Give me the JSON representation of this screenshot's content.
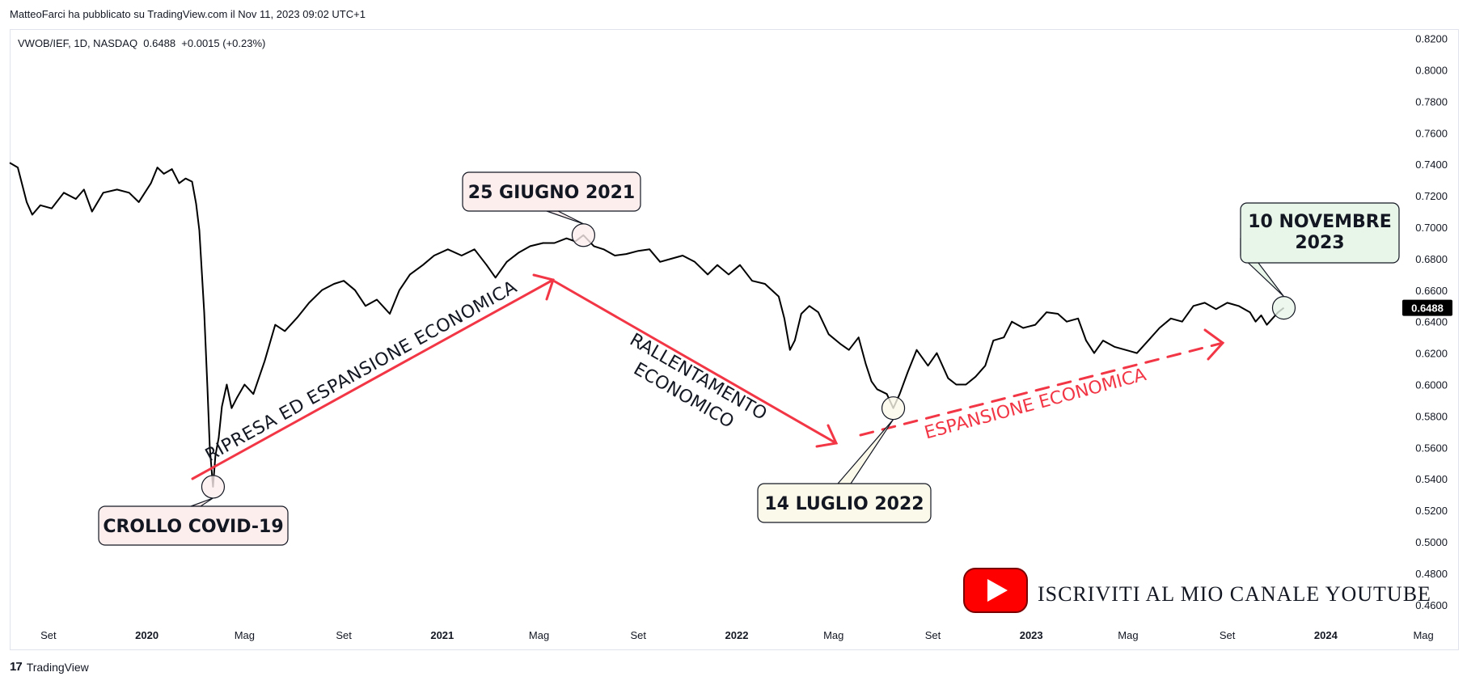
{
  "header": {
    "published_text": "MatteoFarci ha pubblicato su TradingView.com il Nov 11, 2023 09:02 UTC+1"
  },
  "footer": {
    "brand": "TradingView"
  },
  "youtube": {
    "cta": "ISCRIVITI AL MIO CANALE YOUTUBE"
  },
  "chart_data": {
    "type": "line",
    "symbol_line": "VWOB/IEF, 1D, NASDAQ  0.6488  +0.0015 (+0.23%)",
    "last_price_label": "0.6488",
    "title": "",
    "xlabel": "",
    "ylabel": "",
    "y_range": [
      0.446,
      0.826
    ],
    "y_ticks": [
      "0.8200",
      "0.8000",
      "0.7800",
      "0.7600",
      "0.7400",
      "0.7200",
      "0.7000",
      "0.6800",
      "0.6600",
      "0.6400",
      "0.6200",
      "0.6000",
      "0.5800",
      "0.5600",
      "0.5400",
      "0.5200",
      "0.5000",
      "0.4800",
      "0.4600"
    ],
    "x_range": [
      "2019-07-15",
      "2024-06-15"
    ],
    "x_ticks": [
      {
        "date": "2019-09-01",
        "label": "Set",
        "bold": false
      },
      {
        "date": "2020-01-01",
        "label": "2020",
        "bold": true
      },
      {
        "date": "2020-05-01",
        "label": "Mag",
        "bold": false
      },
      {
        "date": "2020-09-01",
        "label": "Set",
        "bold": false
      },
      {
        "date": "2021-01-01",
        "label": "2021",
        "bold": true
      },
      {
        "date": "2021-05-01",
        "label": "Mag",
        "bold": false
      },
      {
        "date": "2021-09-01",
        "label": "Set",
        "bold": false
      },
      {
        "date": "2022-01-01",
        "label": "2022",
        "bold": true
      },
      {
        "date": "2022-05-01",
        "label": "Mag",
        "bold": false
      },
      {
        "date": "2022-09-01",
        "label": "Set",
        "bold": false
      },
      {
        "date": "2023-01-01",
        "label": "2023",
        "bold": true
      },
      {
        "date": "2023-05-01",
        "label": "Mag",
        "bold": false
      },
      {
        "date": "2023-09-01",
        "label": "Set",
        "bold": false
      },
      {
        "date": "2024-01-01",
        "label": "2024",
        "bold": true
      },
      {
        "date": "2024-05-01",
        "label": "Mag",
        "bold": false
      }
    ],
    "series": [
      {
        "color": "#000000",
        "points": [
          [
            "2019-07-15",
            0.741
          ],
          [
            "2019-07-25",
            0.738
          ],
          [
            "2019-08-05",
            0.716
          ],
          [
            "2019-08-12",
            0.708
          ],
          [
            "2019-08-22",
            0.714
          ],
          [
            "2019-09-05",
            0.712
          ],
          [
            "2019-09-20",
            0.722
          ],
          [
            "2019-10-05",
            0.718
          ],
          [
            "2019-10-15",
            0.724
          ],
          [
            "2019-10-25",
            0.71
          ],
          [
            "2019-11-08",
            0.722
          ],
          [
            "2019-11-25",
            0.724
          ],
          [
            "2019-12-10",
            0.722
          ],
          [
            "2019-12-22",
            0.716
          ],
          [
            "2020-01-06",
            0.728
          ],
          [
            "2020-01-14",
            0.738
          ],
          [
            "2020-01-22",
            0.734
          ],
          [
            "2020-02-01",
            0.737
          ],
          [
            "2020-02-10",
            0.728
          ],
          [
            "2020-02-18",
            0.731
          ],
          [
            "2020-02-26",
            0.729
          ],
          [
            "2020-03-02",
            0.715
          ],
          [
            "2020-03-06",
            0.698
          ],
          [
            "2020-03-09",
            0.672
          ],
          [
            "2020-03-12",
            0.646
          ],
          [
            "2020-03-16",
            0.598
          ],
          [
            "2020-03-19",
            0.56
          ],
          [
            "2020-03-23",
            0.535
          ],
          [
            "2020-03-26",
            0.555
          ],
          [
            "2020-03-30",
            0.566
          ],
          [
            "2020-04-03",
            0.586
          ],
          [
            "2020-04-09",
            0.6
          ],
          [
            "2020-04-15",
            0.585
          ],
          [
            "2020-04-22",
            0.592
          ],
          [
            "2020-05-01",
            0.6
          ],
          [
            "2020-05-12",
            0.594
          ],
          [
            "2020-05-26",
            0.615
          ],
          [
            "2020-06-08",
            0.638
          ],
          [
            "2020-06-20",
            0.634
          ],
          [
            "2020-07-06",
            0.643
          ],
          [
            "2020-07-20",
            0.652
          ],
          [
            "2020-08-05",
            0.66
          ],
          [
            "2020-08-20",
            0.664
          ],
          [
            "2020-09-01",
            0.666
          ],
          [
            "2020-09-15",
            0.66
          ],
          [
            "2020-09-28",
            0.65
          ],
          [
            "2020-10-12",
            0.654
          ],
          [
            "2020-10-28",
            0.645
          ],
          [
            "2020-11-09",
            0.66
          ],
          [
            "2020-11-22",
            0.67
          ],
          [
            "2020-12-08",
            0.676
          ],
          [
            "2020-12-22",
            0.682
          ],
          [
            "2021-01-08",
            0.686
          ],
          [
            "2021-01-25",
            0.682
          ],
          [
            "2021-02-10",
            0.686
          ],
          [
            "2021-02-25",
            0.676
          ],
          [
            "2021-03-08",
            0.668
          ],
          [
            "2021-03-22",
            0.678
          ],
          [
            "2021-04-06",
            0.684
          ],
          [
            "2021-04-20",
            0.688
          ],
          [
            "2021-05-06",
            0.69
          ],
          [
            "2021-05-20",
            0.69
          ],
          [
            "2021-06-04",
            0.693
          ],
          [
            "2021-06-15",
            0.691
          ],
          [
            "2021-06-25",
            0.695
          ],
          [
            "2021-07-08",
            0.688
          ],
          [
            "2021-07-20",
            0.686
          ],
          [
            "2021-08-03",
            0.682
          ],
          [
            "2021-08-17",
            0.683
          ],
          [
            "2021-09-01",
            0.685
          ],
          [
            "2021-09-15",
            0.686
          ],
          [
            "2021-09-28",
            0.678
          ],
          [
            "2021-10-12",
            0.68
          ],
          [
            "2021-10-26",
            0.682
          ],
          [
            "2021-11-10",
            0.678
          ],
          [
            "2021-11-26",
            0.67
          ],
          [
            "2021-12-08",
            0.676
          ],
          [
            "2021-12-22",
            0.67
          ],
          [
            "2022-01-05",
            0.676
          ],
          [
            "2022-01-20",
            0.666
          ],
          [
            "2022-02-05",
            0.664
          ],
          [
            "2022-02-22",
            0.656
          ],
          [
            "2022-03-01",
            0.642
          ],
          [
            "2022-03-08",
            0.622
          ],
          [
            "2022-03-14",
            0.628
          ],
          [
            "2022-03-22",
            0.645
          ],
          [
            "2022-04-01",
            0.65
          ],
          [
            "2022-04-12",
            0.646
          ],
          [
            "2022-04-25",
            0.632
          ],
          [
            "2022-05-09",
            0.626
          ],
          [
            "2022-05-20",
            0.622
          ],
          [
            "2022-06-01",
            0.63
          ],
          [
            "2022-06-10",
            0.613
          ],
          [
            "2022-06-17",
            0.602
          ],
          [
            "2022-06-24",
            0.597
          ],
          [
            "2022-07-06",
            0.594
          ],
          [
            "2022-07-14",
            0.585
          ],
          [
            "2022-07-22",
            0.594
          ],
          [
            "2022-08-01",
            0.608
          ],
          [
            "2022-08-12",
            0.622
          ],
          [
            "2022-08-26",
            0.612
          ],
          [
            "2022-09-06",
            0.62
          ],
          [
            "2022-09-20",
            0.604
          ],
          [
            "2022-09-30",
            0.6
          ],
          [
            "2022-10-12",
            0.6
          ],
          [
            "2022-10-24",
            0.605
          ],
          [
            "2022-11-05",
            0.612
          ],
          [
            "2022-11-15",
            0.628
          ],
          [
            "2022-11-28",
            0.63
          ],
          [
            "2022-12-08",
            0.64
          ],
          [
            "2022-12-22",
            0.636
          ],
          [
            "2023-01-06",
            0.638
          ],
          [
            "2023-01-20",
            0.646
          ],
          [
            "2023-02-03",
            0.645
          ],
          [
            "2023-02-14",
            0.64
          ],
          [
            "2023-02-28",
            0.642
          ],
          [
            "2023-03-10",
            0.628
          ],
          [
            "2023-03-20",
            0.62
          ],
          [
            "2023-03-31",
            0.628
          ],
          [
            "2023-04-14",
            0.624
          ],
          [
            "2023-04-28",
            0.622
          ],
          [
            "2023-05-12",
            0.62
          ],
          [
            "2023-05-26",
            0.628
          ],
          [
            "2023-06-09",
            0.636
          ],
          [
            "2023-06-23",
            0.642
          ],
          [
            "2023-07-07",
            0.64
          ],
          [
            "2023-07-21",
            0.65
          ],
          [
            "2023-08-04",
            0.652
          ],
          [
            "2023-08-18",
            0.648
          ],
          [
            "2023-09-01",
            0.652
          ],
          [
            "2023-09-15",
            0.65
          ],
          [
            "2023-09-29",
            0.646
          ],
          [
            "2023-10-06",
            0.64
          ],
          [
            "2023-10-13",
            0.644
          ],
          [
            "2023-10-20",
            0.638
          ],
          [
            "2023-10-27",
            0.642
          ],
          [
            "2023-11-03",
            0.646
          ],
          [
            "2023-11-10",
            0.6488
          ]
        ]
      }
    ],
    "annotations": [
      {
        "text": "CROLLO COVID-19",
        "date": "2020-03-23",
        "value": 0.535,
        "bg": "#fdeeee"
      },
      {
        "text": "25 GIUGNO 2021",
        "date": "2021-06-25",
        "value": 0.695,
        "bg": "#fdeeee"
      },
      {
        "text": "14 LUGLIO 2022",
        "date": "2022-07-14",
        "value": 0.585,
        "bg": "#fbf9ea"
      },
      {
        "text": "10 NOVEMBRE 2023",
        "date": "2023-11-10",
        "value": 0.6488,
        "bg": "#e8f5e9"
      }
    ],
    "trend_labels": [
      {
        "text": "RIPRESA ED ESPANSIONE ECONOMICA",
        "color": "#131722"
      },
      {
        "text": "RALLENTAMENTO ECONOMICO",
        "color": "#131722"
      },
      {
        "text": "ESPANSIONE ECONOMICA",
        "color": "#f23645"
      }
    ],
    "colors": {
      "line": "#000000",
      "trend": "#f23645",
      "grid": "none",
      "price_tag_bg": "#000000"
    }
  }
}
